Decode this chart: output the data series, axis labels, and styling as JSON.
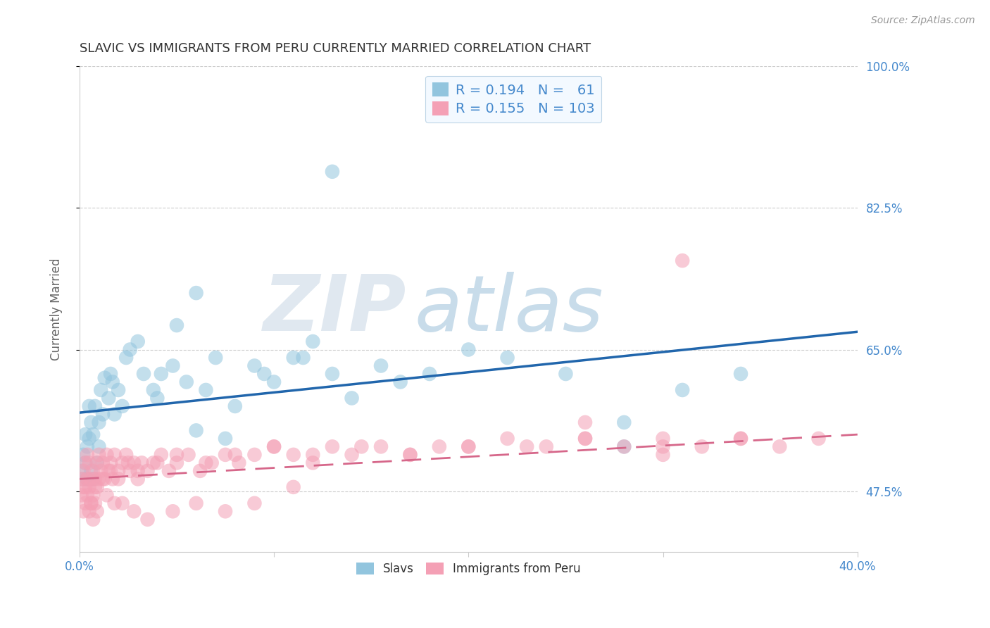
{
  "title": "SLAVIC VS IMMIGRANTS FROM PERU CURRENTLY MARRIED CORRELATION CHART",
  "source": "Source: ZipAtlas.com",
  "ylabel": "Currently Married",
  "xlim": [
    0.0,
    0.4
  ],
  "ylim": [
    0.4,
    1.0
  ],
  "yticks": [
    1.0,
    0.825,
    0.65,
    0.475
  ],
  "slavic_color": "#92c5de",
  "peru_color": "#f4a0b5",
  "slavic_R": 0.194,
  "slavic_N": 61,
  "peru_R": 0.155,
  "peru_N": 103,
  "trend_blue": "#2166ac",
  "trend_pink": "#d6678a",
  "watermark_zip_color": "#e0e8f0",
  "watermark_atlas_color": "#c8dcea",
  "background_color": "#ffffff",
  "grid_color": "#cccccc",
  "title_color": "#333333",
  "axis_label_color": "#4488cc",
  "legend_face": "#f0f8ff",
  "legend_edge": "#b0cce0",
  "slavic_x": [
    0.001,
    0.002,
    0.002,
    0.003,
    0.003,
    0.004,
    0.004,
    0.005,
    0.005,
    0.006,
    0.006,
    0.007,
    0.007,
    0.008,
    0.009,
    0.01,
    0.01,
    0.011,
    0.012,
    0.013,
    0.015,
    0.016,
    0.017,
    0.018,
    0.02,
    0.022,
    0.024,
    0.026,
    0.03,
    0.033,
    0.038,
    0.042,
    0.048,
    0.055,
    0.06,
    0.065,
    0.07,
    0.08,
    0.09,
    0.1,
    0.11,
    0.12,
    0.13,
    0.14,
    0.155,
    0.165,
    0.18,
    0.2,
    0.22,
    0.25,
    0.28,
    0.13,
    0.06,
    0.075,
    0.095,
    0.115,
    0.04,
    0.05,
    0.31,
    0.34,
    0.28
  ],
  "slavic_y": [
    0.5,
    0.52,
    0.49,
    0.51,
    0.545,
    0.53,
    0.49,
    0.54,
    0.58,
    0.56,
    0.5,
    0.545,
    0.49,
    0.58,
    0.51,
    0.53,
    0.56,
    0.6,
    0.57,
    0.615,
    0.59,
    0.62,
    0.61,
    0.57,
    0.6,
    0.58,
    0.64,
    0.65,
    0.66,
    0.62,
    0.6,
    0.62,
    0.63,
    0.61,
    0.55,
    0.6,
    0.64,
    0.58,
    0.63,
    0.61,
    0.64,
    0.66,
    0.62,
    0.59,
    0.63,
    0.61,
    0.62,
    0.65,
    0.64,
    0.62,
    0.53,
    0.87,
    0.72,
    0.54,
    0.62,
    0.64,
    0.59,
    0.68,
    0.6,
    0.62,
    0.56
  ],
  "peru_x": [
    0.001,
    0.001,
    0.002,
    0.002,
    0.002,
    0.003,
    0.003,
    0.003,
    0.004,
    0.004,
    0.004,
    0.005,
    0.005,
    0.005,
    0.006,
    0.006,
    0.007,
    0.007,
    0.008,
    0.008,
    0.009,
    0.009,
    0.01,
    0.01,
    0.011,
    0.012,
    0.013,
    0.014,
    0.015,
    0.016,
    0.017,
    0.018,
    0.02,
    0.022,
    0.024,
    0.026,
    0.028,
    0.03,
    0.032,
    0.035,
    0.038,
    0.042,
    0.046,
    0.05,
    0.056,
    0.062,
    0.068,
    0.075,
    0.082,
    0.09,
    0.1,
    0.11,
    0.12,
    0.13,
    0.14,
    0.155,
    0.17,
    0.185,
    0.2,
    0.22,
    0.24,
    0.26,
    0.28,
    0.3,
    0.32,
    0.34,
    0.36,
    0.38,
    0.3,
    0.26,
    0.006,
    0.008,
    0.012,
    0.016,
    0.02,
    0.025,
    0.03,
    0.04,
    0.05,
    0.065,
    0.08,
    0.1,
    0.12,
    0.145,
    0.17,
    0.2,
    0.23,
    0.26,
    0.3,
    0.34,
    0.007,
    0.009,
    0.014,
    0.018,
    0.022,
    0.028,
    0.035,
    0.048,
    0.06,
    0.075,
    0.09,
    0.11,
    0.31
  ],
  "peru_y": [
    0.47,
    0.49,
    0.45,
    0.48,
    0.5,
    0.46,
    0.48,
    0.51,
    0.47,
    0.49,
    0.52,
    0.45,
    0.48,
    0.51,
    0.46,
    0.49,
    0.47,
    0.5,
    0.46,
    0.49,
    0.48,
    0.51,
    0.49,
    0.52,
    0.5,
    0.51,
    0.49,
    0.52,
    0.5,
    0.51,
    0.49,
    0.52,
    0.5,
    0.51,
    0.52,
    0.5,
    0.51,
    0.49,
    0.51,
    0.5,
    0.51,
    0.52,
    0.5,
    0.51,
    0.52,
    0.5,
    0.51,
    0.52,
    0.51,
    0.52,
    0.53,
    0.52,
    0.51,
    0.53,
    0.52,
    0.53,
    0.52,
    0.53,
    0.53,
    0.54,
    0.53,
    0.54,
    0.53,
    0.54,
    0.53,
    0.54,
    0.53,
    0.54,
    0.52,
    0.56,
    0.46,
    0.48,
    0.49,
    0.5,
    0.49,
    0.51,
    0.5,
    0.51,
    0.52,
    0.51,
    0.52,
    0.53,
    0.52,
    0.53,
    0.52,
    0.53,
    0.53,
    0.54,
    0.53,
    0.54,
    0.44,
    0.45,
    0.47,
    0.46,
    0.46,
    0.45,
    0.44,
    0.45,
    0.46,
    0.45,
    0.46,
    0.48,
    0.76
  ]
}
